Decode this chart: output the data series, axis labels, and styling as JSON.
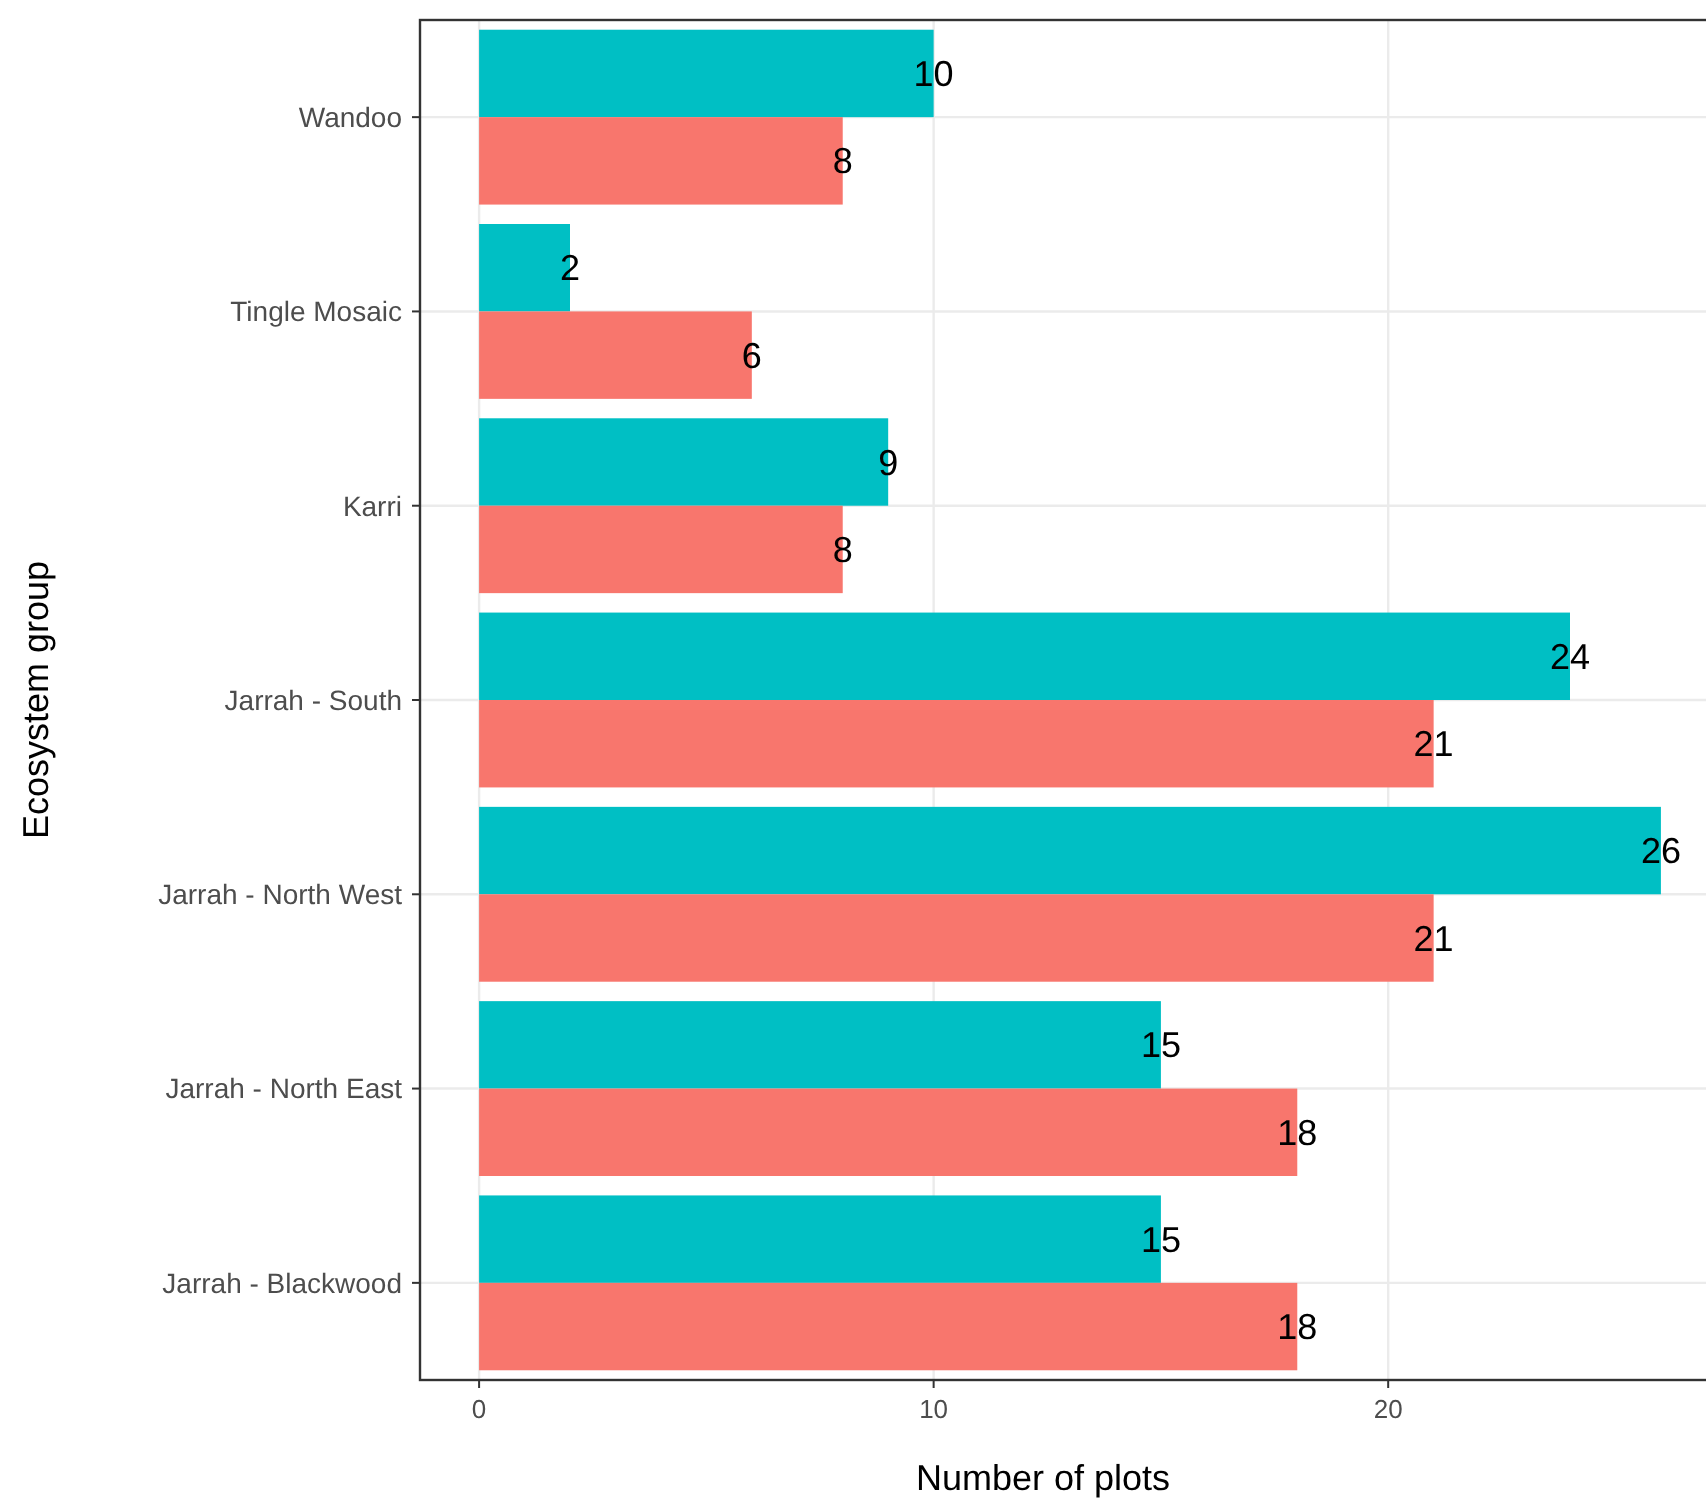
{
  "chart_data": {
    "type": "bar",
    "orientation": "horizontal",
    "xlabel": "Number of plots",
    "ylabel": "Ecosystem group",
    "categories": [
      "Wandoo",
      "Tingle Mosaic",
      "Karri",
      "Jarrah - South",
      "Jarrah - North West",
      "Jarrah - North East",
      "Jarrah - Blackwood"
    ],
    "series": [
      {
        "color": "#00bfc4",
        "values": [
          10,
          2,
          9,
          24,
          26,
          15,
          15
        ]
      },
      {
        "color": "#f8766d",
        "values": [
          8,
          6,
          8,
          21,
          21,
          18,
          18
        ]
      }
    ],
    "xlim": [
      -1.3,
      27.3
    ],
    "xticks": [
      0,
      10,
      20
    ],
    "grid": true,
    "data_labels": true
  }
}
